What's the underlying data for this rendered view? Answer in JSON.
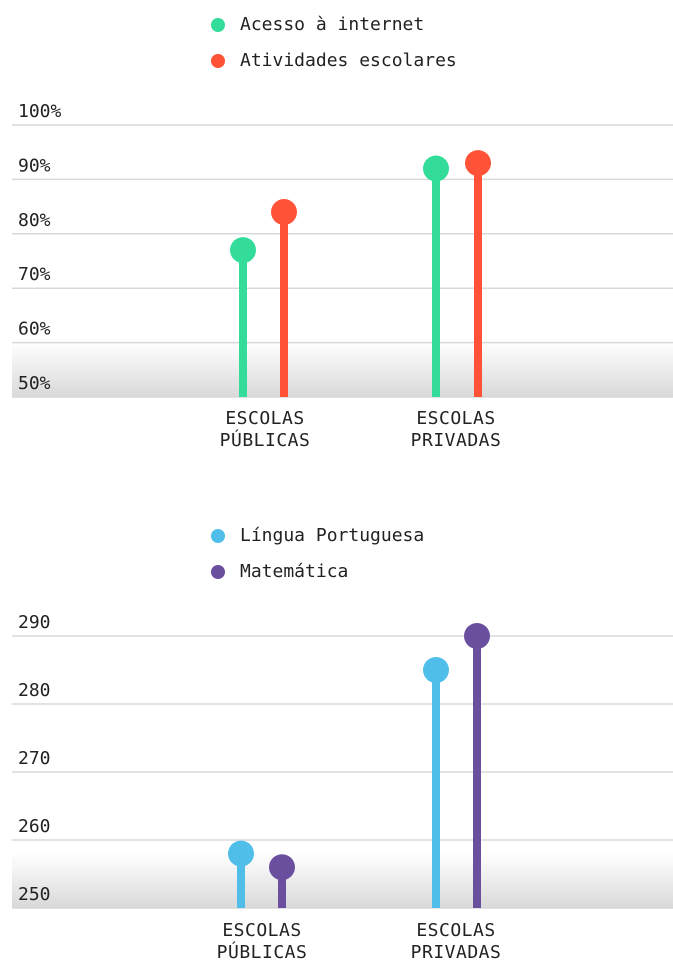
{
  "chart_data": [
    {
      "type": "lollipop",
      "categories": [
        "ESCOLAS PÚBLICAS",
        "ESCOLAS PRIVADAS"
      ],
      "series": [
        {
          "name": "Acesso à internet",
          "color": "#33dd99",
          "values": [
            77,
            92
          ]
        },
        {
          "name": "Atividades escolares",
          "color": "#ff5236",
          "values": [
            84,
            93
          ]
        }
      ],
      "ylim": [
        50,
        100
      ],
      "yticks": [
        {
          "value": 50,
          "label": "50%"
        },
        {
          "value": 60,
          "label": "60%"
        },
        {
          "value": 70,
          "label": "70%"
        },
        {
          "value": 80,
          "label": "80%"
        },
        {
          "value": 90,
          "label": "90%"
        },
        {
          "value": 100,
          "label": "100%"
        }
      ],
      "grid": true
    },
    {
      "type": "lollipop",
      "categories": [
        "ESCOLAS PÚBLICAS",
        "ESCOLAS PRIVADAS"
      ],
      "series": [
        {
          "name": "Língua Portuguesa",
          "color": "#4fbfea",
          "values": [
            258,
            285
          ]
        },
        {
          "name": "Matemática",
          "color": "#6a4f9f",
          "values": [
            256,
            290
          ]
        }
      ],
      "ylim": [
        250,
        290
      ],
      "yticks": [
        250,
        260,
        270,
        280,
        290
      ],
      "grid": true
    }
  ]
}
